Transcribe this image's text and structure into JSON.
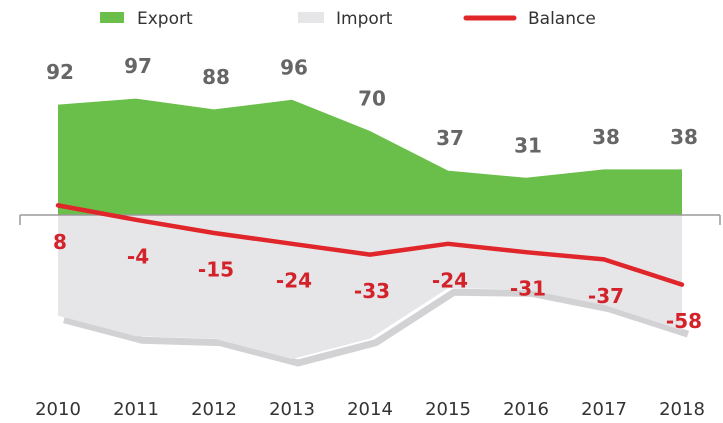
{
  "chart_data": {
    "type": "area-line",
    "categories": [
      "2010",
      "2011",
      "2012",
      "2013",
      "2014",
      "2015",
      "2016",
      "2017",
      "2018"
    ],
    "series": [
      {
        "name": "Export",
        "color": "#6abf4b",
        "values": [
          92,
          97,
          88,
          96,
          70,
          37,
          31,
          38,
          38
        ]
      },
      {
        "name": "Import",
        "color": "#e6e6e8",
        "values": [
          -84,
          -101,
          -103,
          -120,
          -103,
          -61,
          -62,
          -75,
          -96
        ]
      },
      {
        "name": "Balance",
        "color": "#e0262a",
        "values": [
          8,
          -4,
          -15,
          -24,
          -33,
          -24,
          -31,
          -37,
          -58
        ]
      }
    ],
    "ylim": [
      -130,
      110
    ]
  }
}
